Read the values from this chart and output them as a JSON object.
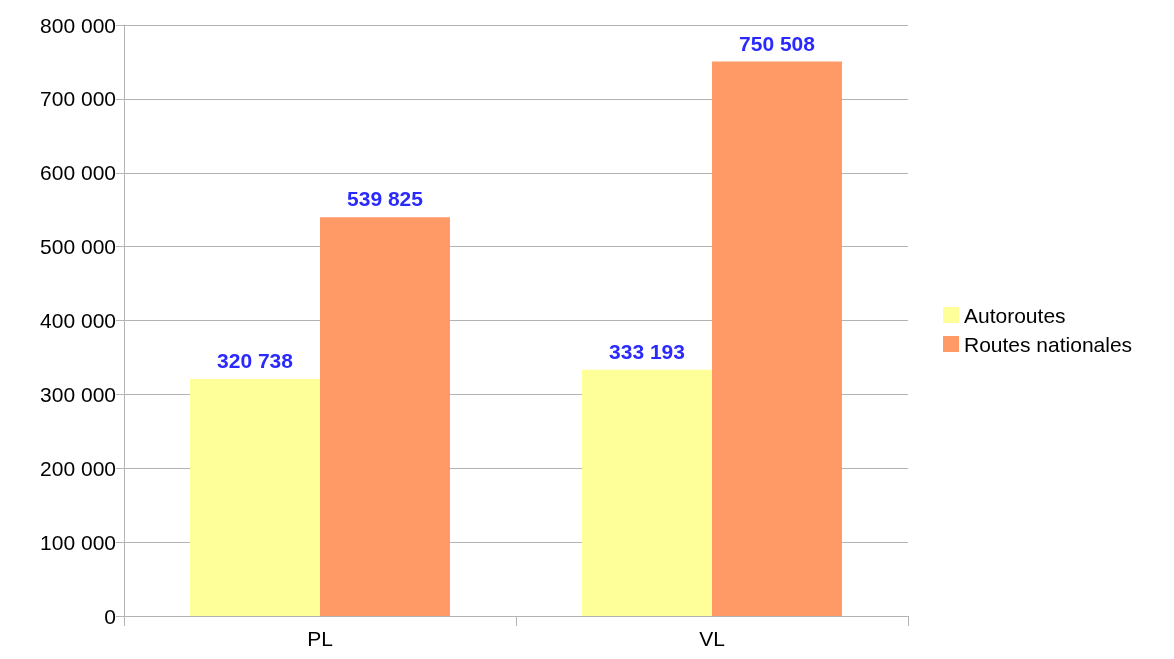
{
  "chart_data": {
    "type": "bar",
    "categories": [
      "PL",
      "VL"
    ],
    "series": [
      {
        "name": "Autoroutes",
        "color": "#ffff99",
        "values": [
          320738,
          333193
        ],
        "value_labels": [
          "320 738",
          "333 193"
        ]
      },
      {
        "name": "Routes nationales",
        "color": "#ff9966",
        "values": [
          539825,
          750508
        ],
        "value_labels": [
          "539 825",
          "750 508"
        ]
      }
    ],
    "ylim": [
      0,
      800000
    ],
    "yticks": [
      {
        "value": 0,
        "label": "0"
      },
      {
        "value": 100000,
        "label": "100 000"
      },
      {
        "value": 200000,
        "label": "200 000"
      },
      {
        "value": 300000,
        "label": "300 000"
      },
      {
        "value": 400000,
        "label": "400 000"
      },
      {
        "value": 500000,
        "label": "500 000"
      },
      {
        "value": 600000,
        "label": "600 000"
      },
      {
        "value": 700000,
        "label": "700 000"
      },
      {
        "value": 800000,
        "label": "800 000"
      }
    ],
    "grid": "y",
    "legend": "right"
  }
}
